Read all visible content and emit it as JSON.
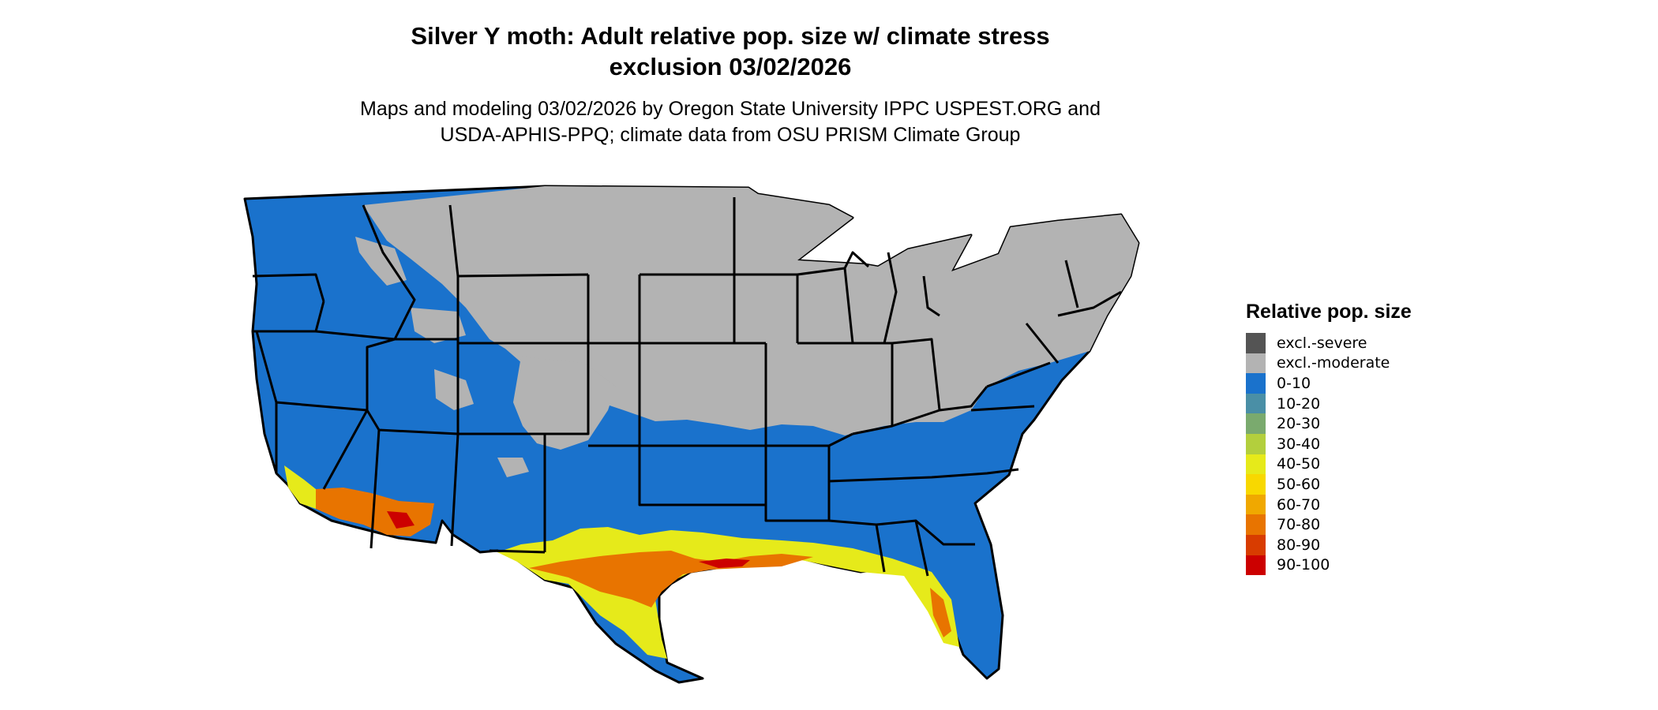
{
  "title": {
    "line1": "Silver Y moth: Adult relative pop. size w/ climate stress",
    "line2": "exclusion 03/02/2026"
  },
  "subtitle": {
    "line1": "Maps and modeling 03/02/2026 by Oregon State University IPPC USPEST.ORG and",
    "line2": "USDA-APHIS-PPQ; climate data from OSU PRISM Climate Group"
  },
  "legend": {
    "title": "Relative pop. size",
    "items": [
      {
        "label": "excl.-severe",
        "color": "#545454"
      },
      {
        "label": "excl.-moderate",
        "color": "#b3b3b3"
      },
      {
        "label": "0-10",
        "color": "#1a72cc"
      },
      {
        "label": "10-20",
        "color": "#4a8fa6"
      },
      {
        "label": "20-30",
        "color": "#7aaa6e"
      },
      {
        "label": "30-40",
        "color": "#b3cf3d"
      },
      {
        "label": "40-50",
        "color": "#e6ea1a"
      },
      {
        "label": "50-60",
        "color": "#f8d800"
      },
      {
        "label": "60-70",
        "color": "#f0a800"
      },
      {
        "label": "70-80",
        "color": "#e87400"
      },
      {
        "label": "80-90",
        "color": "#d83c00"
      },
      {
        "label": "90-100",
        "color": "#cc0000"
      }
    ]
  },
  "map": {
    "region": "Contiguous United States",
    "colors": {
      "low": "#1a72cc",
      "excluded": "#b3b3b3",
      "mid": "#e6ea1a",
      "high": "#e87400",
      "peak": "#cc0000",
      "border": "#000000"
    }
  }
}
